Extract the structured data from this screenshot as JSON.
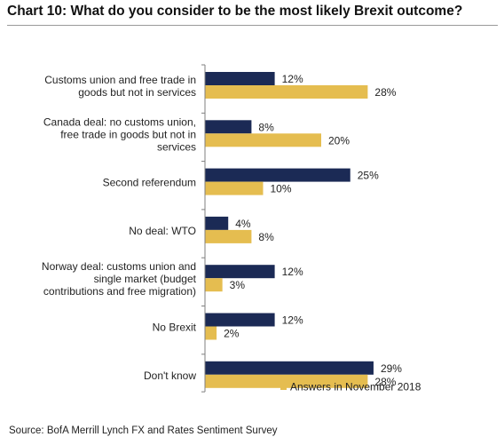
{
  "title": "Chart 10: What do you consider to be the most likely Brexit outcome?",
  "source": "Source: BofA Merrill Lynch FX and Rates Sentiment Survey",
  "colors": {
    "series_current": "#1b2a55",
    "series_previous": "#e5bd50",
    "axis": "#7f7f7f"
  },
  "chart_data": {
    "type": "bar",
    "orientation": "horizontal",
    "categories": [
      [
        "Customs union and free trade in",
        "goods but not in services"
      ],
      [
        "Canada deal: no customs union,",
        "free trade in goods but not in",
        "services"
      ],
      [
        "Second referendum"
      ],
      [
        "No deal: WTO"
      ],
      [
        "Norway deal: customs union and",
        "single market (budget",
        "contributions and free migration)"
      ],
      [
        "No Brexit"
      ],
      [
        "Don't know"
      ]
    ],
    "series": [
      {
        "values": [
          12,
          8,
          25,
          4,
          12,
          12,
          29
        ],
        "labels": [
          "12%",
          "8%",
          "25%",
          "4%",
          "12%",
          "12%",
          "29%"
        ]
      },
      {
        "name": "Answers in November 2018",
        "values": [
          28,
          20,
          10,
          8,
          3,
          2,
          28
        ],
        "labels": [
          "28%",
          "20%",
          "10%",
          "8%",
          "3%",
          "2%",
          "28%"
        ]
      }
    ],
    "xlim": [
      0,
      32
    ],
    "legend": {
      "position": "bottom-right",
      "entries": [
        "Answers in November 2018"
      ]
    }
  }
}
